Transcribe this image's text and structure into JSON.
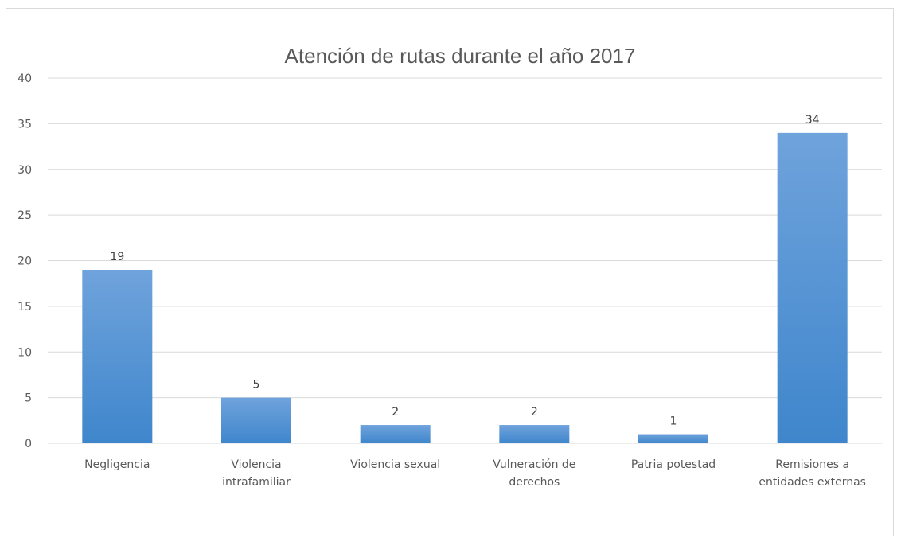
{
  "chart_data": {
    "type": "bar",
    "title": "Atención de rutas durante el año 2017",
    "categories": [
      [
        "Negligencia"
      ],
      [
        "Violencia",
        "intrafamiliar"
      ],
      [
        "Violencia sexual"
      ],
      [
        "Vulneración de",
        "derechos"
      ],
      [
        "Patria potestad"
      ],
      [
        "Remisiones a",
        "entidades externas"
      ]
    ],
    "values": [
      19,
      5,
      2,
      2,
      1,
      34
    ],
    "data_labels": [
      "19",
      "5",
      "2",
      "2",
      "1",
      "34"
    ],
    "ylim": [
      0,
      40
    ],
    "yticks": [
      "0",
      "5",
      "10",
      "15",
      "20",
      "25",
      "30",
      "35",
      "40"
    ],
    "grid": true,
    "legend": "none",
    "colors": {
      "bar_top": "#6fa3dc",
      "bar_bottom": "#3f86cc",
      "grid": "#d9d9d9"
    }
  }
}
